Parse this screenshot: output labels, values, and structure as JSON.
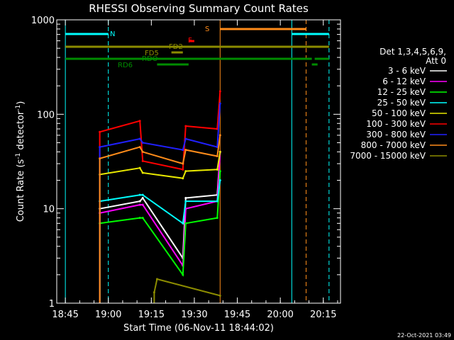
{
  "chart_data": {
    "type": "line",
    "title": "RHESSI Observing Summary Count Rates",
    "xlabel": "Start Time (06-Nov-11 18:44:02)",
    "ylabel": "Count Rate (s⁻¹ detector⁻¹)",
    "ylabel_main": "Count Rate (s",
    "ylabel_sup1": "-1",
    "ylabel_mid": " detector",
    "ylabel_sup2": "-1",
    "ylabel_end": ")",
    "y_scale": "log",
    "ylim": [
      1,
      1000
    ],
    "xlim_minutes": [
      18.7,
      20.35
    ],
    "x_ticks": [
      "18:45",
      "19:00",
      "19:15",
      "19:30",
      "19:45",
      "20:00",
      "20:15"
    ],
    "y_ticks": [
      "1",
      "10",
      "100",
      "1000"
    ],
    "legend": {
      "header1": "Det 1,3,4,5,6,9,",
      "header2": "Att 0",
      "entries": [
        {
          "name": "3 - 6 keV",
          "color": "#ffffff"
        },
        {
          "name": "6 - 12 keV",
          "color": "#ff00ff"
        },
        {
          "name": "12 - 25 keV",
          "color": "#00ff00"
        },
        {
          "name": "25 - 50 keV",
          "color": "#00ffff"
        },
        {
          "name": "50 - 100 keV",
          "color": "#e8e800"
        },
        {
          "name": "100 - 300 keV",
          "color": "#ff0000"
        },
        {
          "name": "300 - 800 keV",
          "color": "#2020ff"
        },
        {
          "name": "800 - 7000 keV",
          "color": "#ff8c1a"
        },
        {
          "name": "7000 - 15000 keV",
          "color": "#8c8c00"
        }
      ]
    },
    "flags": [
      {
        "label": "N",
        "color": "#00ffff",
        "segments": [
          [
            "18:45",
            "19:00"
          ],
          [
            "20:04",
            "20:17"
          ]
        ]
      },
      {
        "label": "S",
        "color": "#ff8c1a",
        "segments": [
          [
            "19:39",
            "20:09"
          ]
        ]
      },
      {
        "label": "F",
        "color": "#ff0000",
        "segments": [
          [
            "19:28",
            "19:30"
          ]
        ]
      },
      {
        "label": "FD2",
        "color": "#8c8c00",
        "segments": [
          [
            "18:45",
            "20:17"
          ]
        ]
      },
      {
        "label": "FD5",
        "color": "#8c8c00",
        "segments": [
          [
            "19:22",
            "19:26"
          ]
        ]
      },
      {
        "label": "RDO",
        "color": "#008c00",
        "segments": [
          [
            "18:45",
            "20:11"
          ],
          [
            "20:12",
            "20:17"
          ]
        ]
      },
      {
        "label": "RD6",
        "color": "#008c00",
        "segments": [
          [
            "19:17",
            "19:28"
          ],
          [
            "20:11",
            "20:13"
          ]
        ]
      }
    ],
    "series": [
      {
        "name": "3 - 6 keV",
        "color": "#ffffff",
        "x": [
          "18:57",
          "19:11",
          "19:12",
          "19:26",
          "19:27",
          "19:38",
          "19:39"
        ],
        "values": [
          10,
          12,
          13,
          3,
          13,
          14,
          40
        ]
      },
      {
        "name": "6 - 12 keV",
        "color": "#ff00ff",
        "x": [
          "18:57",
          "19:11",
          "19:12",
          "19:26",
          "19:27",
          "19:38",
          "19:39"
        ],
        "values": [
          9,
          11,
          11,
          2.5,
          10,
          12,
          40
        ]
      },
      {
        "name": "12 - 25 keV",
        "color": "#00ff00",
        "x": [
          "18:57",
          "19:11",
          "19:12",
          "19:26",
          "19:27",
          "19:38",
          "19:39"
        ],
        "values": [
          7,
          8,
          8,
          2,
          7,
          8,
          25
        ]
      },
      {
        "name": "25 - 50 keV",
        "color": "#00ffff",
        "x": [
          "18:57",
          "19:11",
          "19:12",
          "19:26",
          "19:27",
          "19:38",
          "19:39"
        ],
        "values": [
          12,
          14,
          14,
          7,
          12,
          12,
          20
        ]
      },
      {
        "name": "50 - 100 keV",
        "color": "#e8e800",
        "x": [
          "18:57",
          "19:11",
          "19:12",
          "19:26",
          "19:27",
          "19:38",
          "19:39"
        ],
        "values": [
          23,
          27,
          24,
          21,
          25,
          26,
          40
        ]
      },
      {
        "name": "100 - 300 keV",
        "color": "#ff0000",
        "x": [
          "18:57",
          "19:11",
          "19:12",
          "19:26",
          "19:27",
          "19:38",
          "19:39"
        ],
        "values": [
          65,
          85,
          32,
          26,
          75,
          70,
          175
        ]
      },
      {
        "name": "300 - 800 keV",
        "color": "#2020ff",
        "x": [
          "18:57",
          "19:11",
          "19:12",
          "19:26",
          "19:27",
          "19:38",
          "19:39"
        ],
        "values": [
          45,
          55,
          50,
          42,
          55,
          45,
          130
        ]
      },
      {
        "name": "800 - 7000 keV",
        "color": "#ff8c1a",
        "x": [
          "18:57",
          "19:11",
          "19:12",
          "19:26",
          "19:27",
          "19:38",
          "19:39"
        ],
        "values": [
          34,
          45,
          40,
          30,
          42,
          36,
          60
        ]
      },
      {
        "name": "7000 - 15000 keV",
        "color": "#8c8c00",
        "x": [
          "19:16",
          "19:17",
          "19:39"
        ],
        "values": [
          1.3,
          1.8,
          1.2
        ]
      }
    ],
    "vertical_markers": [
      {
        "time": "18:45",
        "color": "#00ffff",
        "style": "solid"
      },
      {
        "time": "19:00",
        "color": "#00ffff",
        "style": "dashed"
      },
      {
        "time": "19:39",
        "color": "#ff8c1a",
        "style": "solid"
      },
      {
        "time": "20:04",
        "color": "#00ffff",
        "style": "solid"
      },
      {
        "time": "20:09",
        "color": "#ff8c1a",
        "style": "dashed"
      },
      {
        "time": "20:17",
        "color": "#00ffff",
        "style": "dashed"
      }
    ]
  },
  "footer_timestamp": "22-Oct-2021 03:49"
}
